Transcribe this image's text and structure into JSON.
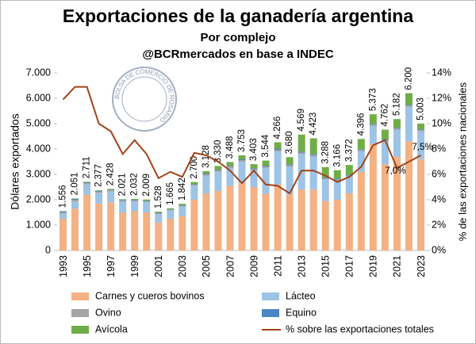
{
  "chart_data": {
    "type": "stacked_bar_line",
    "title": "Exportaciones de la ganadería argentina",
    "subtitle": "Por complejo",
    "source": "@BCRmercados en base a INDEC",
    "logo_text": "BOLSA DE COMERCIO DE ROSARIO",
    "ylabel": "Dólares exportados",
    "y2label": "% de las exportaciones nacionales",
    "categories": [
      "1993",
      null,
      "1995",
      null,
      "1997",
      null,
      "1999",
      null,
      "2001",
      null,
      "2003",
      null,
      "2005",
      null,
      "2007",
      null,
      "2009",
      null,
      "2011",
      null,
      "2013",
      null,
      "2015",
      null,
      "2017",
      null,
      "2019",
      null,
      "2021",
      null,
      "2023"
    ],
    "series": [
      {
        "name": "Carnes y cueros bovinos",
        "color": "#f4b183",
        "values": [
          1250,
          1650,
          2200,
          1850,
          1900,
          1500,
          1550,
          1500,
          1100,
          1250,
          1350,
          2000,
          2250,
          2350,
          2550,
          2650,
          2500,
          2250,
          2600,
          2200,
          2400,
          2400,
          1950,
          2000,
          2250,
          3100,
          4200,
          3400,
          3700,
          4300,
          3600
        ]
      },
      {
        "name": "Lácteo",
        "color": "#9dc3e6",
        "values": [
          200,
          280,
          400,
          420,
          420,
          420,
          380,
          400,
          330,
          320,
          380,
          550,
          700,
          750,
          700,
          850,
          650,
          1000,
          1300,
          1100,
          1400,
          1300,
          850,
          750,
          650,
          800,
          700,
          900,
          1050,
          1350,
          1100
        ]
      },
      {
        "name": "Ovino",
        "color": "#a5a5a5",
        "values": [
          60,
          70,
          60,
          50,
          50,
          50,
          40,
          40,
          30,
          30,
          35,
          40,
          50,
          60,
          60,
          60,
          60,
          60,
          60,
          60,
          60,
          60,
          50,
          50,
          50,
          60,
          60,
          60,
          60,
          60,
          50
        ]
      },
      {
        "name": "Equino",
        "color": "#4a86c5",
        "values": [
          30,
          30,
          30,
          30,
          30,
          25,
          25,
          25,
          25,
          20,
          20,
          25,
          30,
          30,
          30,
          35,
          35,
          35,
          40,
          40,
          40,
          40,
          40,
          30,
          30,
          30,
          30,
          30,
          30,
          30,
          25
        ]
      },
      {
        "name": "Avícola",
        "color": "#70ad47",
        "values": [
          16,
          21,
          21,
          27,
          28,
          26,
          37,
          44,
          43,
          45,
          57,
          85,
          98,
          140,
          148,
          158,
          158,
          199,
          266,
          280,
          669,
          623,
          398,
          336,
          392,
          406,
          383,
          372,
          342,
          460,
          228
        ]
      },
      {
        "name": "% sobre las exportaciones totales",
        "color": "#a0441a",
        "axis": "y2",
        "type": "line",
        "values": [
          11.9,
          12.9,
          12.9,
          10.0,
          9.4,
          7.6,
          8.7,
          7.6,
          5.7,
          6.2,
          5.8,
          7.7,
          7.5,
          7.0,
          6.3,
          5.3,
          6.3,
          5.2,
          5.1,
          4.5,
          6.3,
          6.3,
          5.9,
          5.4,
          5.8,
          6.6,
          8.3,
          8.7,
          6.5,
          7.0,
          7.5
        ],
        "value_labels": [
          null,
          null,
          null,
          null,
          null,
          null,
          null,
          null,
          null,
          null,
          null,
          null,
          null,
          null,
          null,
          null,
          null,
          null,
          null,
          null,
          null,
          null,
          null,
          null,
          null,
          null,
          null,
          null,
          null,
          "7,0%",
          "7,5%"
        ]
      }
    ],
    "totals": {
      "values": [
        1556,
        2051,
        2711,
        2377,
        2428,
        2021,
        2032,
        2009,
        1528,
        1665,
        1842,
        2700,
        3128,
        3330,
        3488,
        3753,
        3403,
        3544,
        4266,
        3680,
        4569,
        4423,
        3288,
        3166,
        3372,
        4396,
        5373,
        4762,
        5182,
        6200,
        5003
      ],
      "value_labels": [
        "1.556",
        "2.051",
        "2.711",
        "2.377",
        "2.428",
        "2.021",
        "2.032",
        "2.009",
        "1.528",
        "1.665",
        "1.842",
        "2.700",
        "3.128",
        "3.330",
        "3.488",
        "3.753",
        "3.403",
        "3.544",
        "4.266",
        "3.680",
        "4.569",
        "4.423",
        "3.288",
        "3.166",
        "3.372",
        "4.396",
        "5.373",
        "4.762",
        "5.182",
        "6.200",
        "5.003"
      ]
    },
    "ylim": [
      0,
      7000
    ],
    "yticks": [
      0,
      {
        "value": 1000,
        "label": "1.000"
      },
      {
        "value": 2000,
        "label": "2.000"
      },
      {
        "value": 3000,
        "label": "3.000"
      },
      {
        "value": 4000,
        "label": "4.000"
      },
      {
        "value": 5000,
        "label": "5.000"
      },
      {
        "value": 6000,
        "label": "6.000"
      },
      {
        "value": 7000,
        "label": "7.000"
      }
    ],
    "y2lim": [
      0,
      14
    ],
    "y2ticks": [
      {
        "value": 0,
        "label": "0%"
      },
      {
        "value": 2,
        "label": "2%"
      },
      {
        "value": 4,
        "label": "4%"
      },
      {
        "value": 6,
        "label": "6%"
      },
      {
        "value": 8,
        "label": "8%"
      },
      {
        "value": 10,
        "label": "10%"
      },
      {
        "value": 12,
        "label": "12%"
      },
      {
        "value": 14,
        "label": "14%"
      }
    ],
    "grid": false
  }
}
